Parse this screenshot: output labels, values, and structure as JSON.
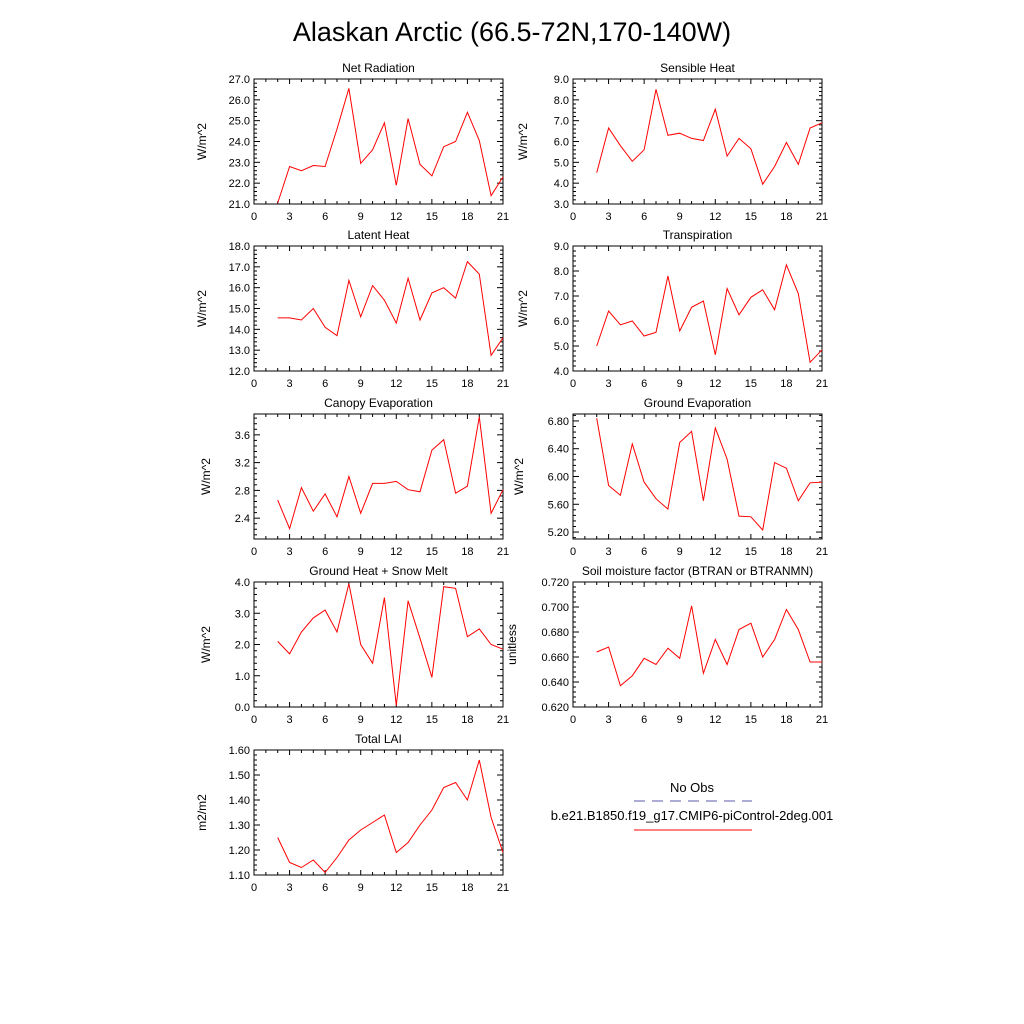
{
  "figure": {
    "title": "Alaskan Arctic (66.5-72N,170-140W)"
  },
  "legend": {
    "items": [
      {
        "label": "No Obs",
        "color": "#5a5aa8",
        "style": "dashed"
      },
      {
        "label": "b.e21.B1850.f19_g17.CMIP6-piControl-2deg.001",
        "color": "#ff0000",
        "style": "solid"
      }
    ]
  },
  "chart_data": [
    {
      "type": "line",
      "title": "Net Radiation",
      "ylabel": "W/m^2",
      "xlim": [
        0,
        21
      ],
      "xticks": [
        "0",
        "3",
        "6",
        "9",
        "12",
        "15",
        "18",
        "21"
      ],
      "ylim": [
        21,
        27
      ],
      "yticks": [
        "21.0",
        "22.0",
        "23.0",
        "24.0",
        "25.0",
        "26.0",
        "27.0"
      ],
      "series": [
        {
          "color": "#ff0000",
          "x": [
            2,
            3,
            4,
            5,
            6,
            7,
            8,
            9,
            10,
            11,
            12,
            13,
            14,
            15,
            16,
            17,
            18,
            19,
            20,
            21
          ],
          "y": [
            21.05,
            22.8,
            22.6,
            22.85,
            22.8,
            24.6,
            26.55,
            22.95,
            23.6,
            24.9,
            21.9,
            25.1,
            22.9,
            22.35,
            23.75,
            24.0,
            25.4,
            24.05,
            21.4,
            22.3
          ]
        }
      ]
    },
    {
      "type": "line",
      "title": "Sensible Heat",
      "ylabel": "W/m^2",
      "xlim": [
        0,
        21
      ],
      "xticks": [
        "0",
        "3",
        "6",
        "9",
        "12",
        "15",
        "18",
        "21"
      ],
      "ylim": [
        3,
        9
      ],
      "yticks": [
        "3.0",
        "4.0",
        "5.0",
        "6.0",
        "7.0",
        "8.0",
        "9.0"
      ],
      "series": [
        {
          "color": "#ff0000",
          "x": [
            2,
            3,
            4,
            5,
            6,
            7,
            8,
            9,
            10,
            11,
            12,
            13,
            14,
            15,
            16,
            17,
            18,
            19,
            20,
            21
          ],
          "y": [
            4.5,
            6.65,
            5.8,
            5.05,
            5.6,
            8.5,
            6.3,
            6.4,
            6.15,
            6.05,
            7.55,
            5.3,
            6.15,
            5.65,
            3.95,
            4.8,
            5.95,
            4.9,
            6.65,
            6.9
          ]
        }
      ]
    },
    {
      "type": "line",
      "title": "Latent Heat",
      "ylabel": "W/m^2",
      "xlim": [
        0,
        21
      ],
      "xticks": [
        "0",
        "3",
        "6",
        "9",
        "12",
        "15",
        "18",
        "21"
      ],
      "ylim": [
        12,
        18
      ],
      "yticks": [
        "12.0",
        "13.0",
        "14.0",
        "15.0",
        "16.0",
        "17.0",
        "18.0"
      ],
      "series": [
        {
          "color": "#ff0000",
          "x": [
            2,
            3,
            4,
            5,
            6,
            7,
            8,
            9,
            10,
            11,
            12,
            13,
            14,
            15,
            16,
            17,
            18,
            19,
            20,
            21
          ],
          "y": [
            14.55,
            14.55,
            14.45,
            15.0,
            14.1,
            13.7,
            16.35,
            14.6,
            16.1,
            15.4,
            14.3,
            16.45,
            14.45,
            15.75,
            16.0,
            15.5,
            17.25,
            16.65,
            12.75,
            13.6
          ]
        }
      ]
    },
    {
      "type": "line",
      "title": "Transpiration",
      "ylabel": "W/m^2",
      "xlim": [
        0,
        21
      ],
      "xticks": [
        "0",
        "3",
        "6",
        "9",
        "12",
        "15",
        "18",
        "21"
      ],
      "ylim": [
        4,
        9
      ],
      "yticks": [
        "4.0",
        "5.0",
        "6.0",
        "7.0",
        "8.0",
        "9.0"
      ],
      "series": [
        {
          "color": "#ff0000",
          "x": [
            2,
            3,
            4,
            5,
            6,
            7,
            8,
            9,
            10,
            11,
            12,
            13,
            14,
            15,
            16,
            17,
            18,
            19,
            20,
            21
          ],
          "y": [
            5.0,
            6.4,
            5.85,
            6.0,
            5.4,
            5.55,
            7.8,
            5.6,
            6.55,
            6.8,
            4.65,
            7.3,
            6.25,
            6.95,
            7.25,
            6.45,
            8.25,
            7.1,
            4.35,
            4.85
          ]
        }
      ]
    },
    {
      "type": "line",
      "title": "Canopy Evaporation",
      "ylabel": "W/m^2",
      "xlim": [
        0,
        21
      ],
      "xticks": [
        "0",
        "3",
        "6",
        "9",
        "12",
        "15",
        "18",
        "21"
      ],
      "ylim": [
        2.1,
        3.9
      ],
      "yticks": [
        "2.4",
        "2.8",
        "3.2",
        "3.6"
      ],
      "ytick_values": [
        2.4,
        2.8,
        3.2,
        3.6
      ],
      "series": [
        {
          "color": "#ff0000",
          "x": [
            2,
            3,
            4,
            5,
            6,
            7,
            8,
            9,
            10,
            11,
            12,
            13,
            14,
            15,
            16,
            17,
            18,
            19,
            20,
            21
          ],
          "y": [
            2.66,
            2.25,
            2.84,
            2.5,
            2.75,
            2.42,
            3.0,
            2.47,
            2.9,
            2.9,
            2.93,
            2.81,
            2.78,
            3.38,
            3.53,
            2.76,
            2.86,
            3.86,
            2.47,
            2.81
          ]
        }
      ]
    },
    {
      "type": "line",
      "title": "Ground Evaporation",
      "ylabel": "W/m^2",
      "xlim": [
        0,
        21
      ],
      "xticks": [
        "0",
        "3",
        "6",
        "9",
        "12",
        "15",
        "18",
        "21"
      ],
      "ylim": [
        5.1,
        6.9
      ],
      "yticks": [
        "5.20",
        "5.60",
        "6.00",
        "6.40",
        "6.80"
      ],
      "ytick_values": [
        5.2,
        5.6,
        6.0,
        6.4,
        6.8
      ],
      "series": [
        {
          "color": "#ff0000",
          "x": [
            2,
            3,
            4,
            5,
            6,
            7,
            8,
            9,
            10,
            11,
            12,
            13,
            14,
            15,
            16,
            17,
            18,
            19,
            20,
            21
          ],
          "y": [
            6.84,
            5.87,
            5.73,
            6.47,
            5.92,
            5.68,
            5.53,
            6.49,
            6.65,
            5.65,
            6.7,
            6.25,
            5.43,
            5.42,
            5.23,
            6.2,
            6.12,
            5.65,
            5.91,
            5.92
          ]
        }
      ]
    },
    {
      "type": "line",
      "title": "Ground Heat + Snow Melt",
      "ylabel": "W/m^2",
      "xlim": [
        0,
        21
      ],
      "xticks": [
        "0",
        "3",
        "6",
        "9",
        "12",
        "15",
        "18",
        "21"
      ],
      "ylim": [
        0,
        4
      ],
      "yticks": [
        "0.0",
        "1.0",
        "2.0",
        "3.0",
        "4.0"
      ],
      "series": [
        {
          "color": "#ff0000",
          "x": [
            2,
            3,
            4,
            5,
            6,
            7,
            8,
            9,
            10,
            11,
            12,
            13,
            14,
            15,
            16,
            17,
            18,
            19,
            20,
            21
          ],
          "y": [
            2.1,
            1.7,
            2.4,
            2.85,
            3.1,
            2.4,
            3.95,
            2.0,
            1.4,
            3.5,
            0.05,
            3.4,
            2.2,
            0.95,
            3.85,
            3.8,
            2.25,
            2.5,
            2.0,
            1.85
          ]
        }
      ]
    },
    {
      "type": "line",
      "title": "Soil moisture factor (BTRAN or BTRANMN)",
      "ylabel": "unitless",
      "xlim": [
        0,
        21
      ],
      "xticks": [
        "0",
        "3",
        "6",
        "9",
        "12",
        "15",
        "18",
        "21"
      ],
      "ylim": [
        0.62,
        0.72
      ],
      "yticks": [
        "0.620",
        "0.640",
        "0.660",
        "0.680",
        "0.700",
        "0.720"
      ],
      "series": [
        {
          "color": "#ff0000",
          "x": [
            2,
            3,
            4,
            5,
            6,
            7,
            8,
            9,
            10,
            11,
            12,
            13,
            14,
            15,
            16,
            17,
            18,
            19,
            20,
            21
          ],
          "y": [
            0.664,
            0.668,
            0.637,
            0.645,
            0.659,
            0.654,
            0.667,
            0.659,
            0.701,
            0.647,
            0.674,
            0.654,
            0.682,
            0.687,
            0.66,
            0.674,
            0.698,
            0.682,
            0.656,
            0.656
          ]
        }
      ]
    },
    {
      "type": "line",
      "title": "Total LAI",
      "ylabel": "m2/m2",
      "xlim": [
        0,
        21
      ],
      "xticks": [
        "0",
        "3",
        "6",
        "9",
        "12",
        "15",
        "18",
        "21"
      ],
      "ylim": [
        1.1,
        1.6
      ],
      "yticks": [
        "1.10",
        "1.20",
        "1.30",
        "1.40",
        "1.50",
        "1.60"
      ],
      "series": [
        {
          "color": "#ff0000",
          "x": [
            2,
            3,
            4,
            5,
            6,
            7,
            8,
            9,
            10,
            11,
            12,
            13,
            14,
            15,
            16,
            17,
            18,
            19,
            20,
            21
          ],
          "y": [
            1.25,
            1.15,
            1.13,
            1.16,
            1.11,
            1.17,
            1.24,
            1.28,
            1.31,
            1.34,
            1.19,
            1.23,
            1.3,
            1.36,
            1.45,
            1.47,
            1.4,
            1.56,
            1.33,
            1.19
          ]
        }
      ]
    }
  ]
}
